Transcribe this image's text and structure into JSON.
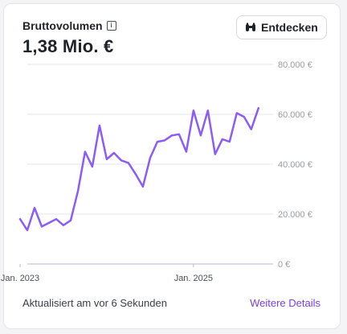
{
  "card": {
    "title": "Bruttovolumen",
    "info_icon": "info-icon",
    "value": "1,38 Mio. €",
    "explore_button": {
      "label": "Entdecken",
      "icon": "binoculars-icon"
    },
    "status_text": "Aktualisiert am vor 6 Sekunden",
    "details_link": "Weitere Details"
  },
  "colors": {
    "line": "#8b5cf6",
    "grid": "#e5e5e8",
    "axis_text": "#9a9ca1",
    "link": "#7b3fe4"
  },
  "chart_data": {
    "type": "line",
    "y_unit": "€",
    "ylim": [
      0,
      80000
    ],
    "yticks": [
      0,
      20000,
      40000,
      60000,
      80000
    ],
    "ytick_labels": [
      "0 €",
      "20.000 €",
      "40.000 €",
      "60.000 €",
      "80.000 €"
    ],
    "xlim": [
      -1,
      33.8
    ],
    "xticks": [
      0,
      24
    ],
    "xtick_labels": [
      "Jan. 2023",
      "Jan. 2025"
    ],
    "grid": true,
    "series": [
      {
        "values": [
          18000,
          13500,
          22500,
          15000,
          16500,
          18000,
          15500,
          17500,
          29000,
          45000,
          39000,
          55500,
          42000,
          44500,
          41500,
          40500,
          36000,
          31000,
          42500,
          49000,
          49500,
          51500,
          52000,
          45000,
          61500,
          51500,
          61500,
          44000,
          50000,
          49000,
          60500,
          59000,
          54000,
          62500
        ]
      }
    ]
  }
}
